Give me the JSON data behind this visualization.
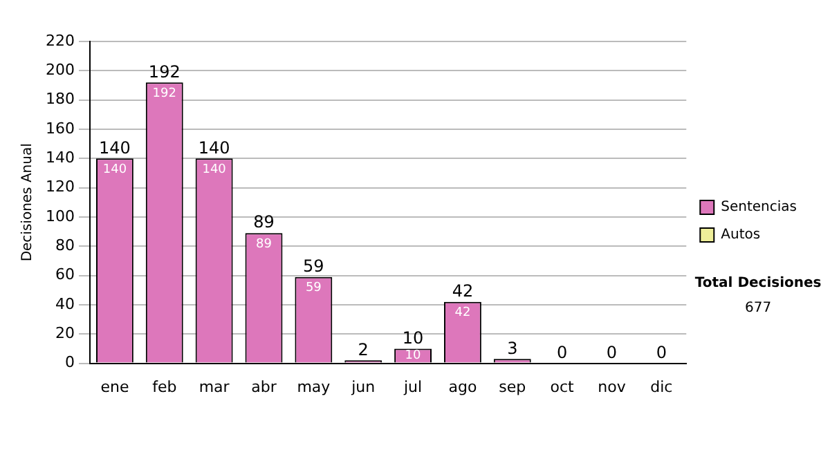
{
  "chart_data": {
    "type": "bar",
    "stacked": true,
    "ylabel": "Decisiones Anual",
    "categories": [
      "ene",
      "feb",
      "mar",
      "abr",
      "may",
      "jun",
      "jul",
      "ago",
      "sep",
      "oct",
      "nov",
      "dic"
    ],
    "series": [
      {
        "name": "Sentencias",
        "color": "#dd77bb",
        "values": [
          140,
          192,
          140,
          89,
          59,
          2,
          10,
          42,
          3,
          0,
          0,
          0
        ],
        "value_labels": [
          "140",
          "192",
          "140",
          "89",
          "59",
          null,
          "10",
          "42",
          null,
          null,
          null,
          null
        ]
      },
      {
        "name": "Autos",
        "color": "#eeee99",
        "values": [
          0,
          0,
          0,
          0,
          0,
          0,
          0,
          0,
          0,
          0,
          0,
          0
        ]
      }
    ],
    "totals": [
      "140",
      "192",
      "140",
      "89",
      "59",
      "2",
      "10",
      "42",
      "3",
      "0",
      "0",
      "0"
    ],
    "ylim": [
      0,
      220
    ],
    "yticks": [
      0,
      20,
      40,
      60,
      80,
      100,
      120,
      140,
      160,
      180,
      200,
      220
    ],
    "grid": "y",
    "legend": "right",
    "annotations": [
      "Total Decisiones",
      "677"
    ]
  }
}
